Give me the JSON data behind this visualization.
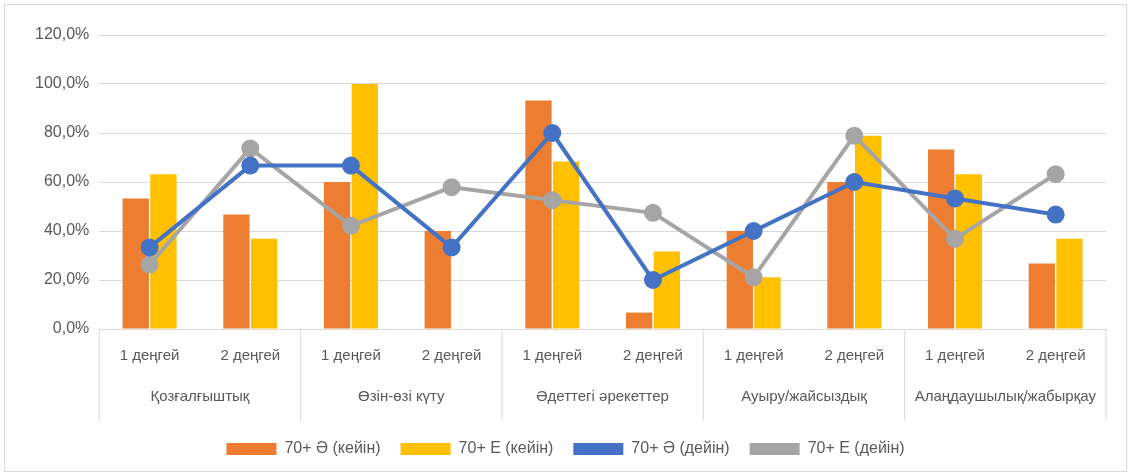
{
  "chart_data": {
    "type": "bar",
    "categories": [
      "1 деңгей",
      "2 деңгей",
      "1 деңгей",
      "2 деңгей",
      "1 деңгей",
      "2 деңгей",
      "1 деңгей",
      "2 деңгей",
      "1 деңгей",
      "2 деңгей"
    ],
    "annotations": [
      "Қозғалғыштық",
      "Өзін-өзі күту",
      "Әдеттегі әрекеттер",
      "Ауыру/жайсыздық",
      "Алаңдаушылық/жабырқау"
    ],
    "series": [
      {
        "name": "70+ Ә (кейін)",
        "color": "#ed7d31",
        "values": [
          53.3,
          46.7,
          60.0,
          40.0,
          93.3,
          6.7,
          40.0,
          60.0,
          73.3,
          26.7
        ]
      },
      {
        "name": "70+ Е (кейін)",
        "color": "#ffc000",
        "values": [
          63.2,
          36.8,
          100.0,
          0,
          68.4,
          31.6,
          21.1,
          78.9,
          63.2,
          36.8
        ]
      },
      {
        "name": "70+ Ә (дейін)",
        "type": "line",
        "color": "#4472c4",
        "values": [
          33.3,
          66.7,
          66.7,
          33.3,
          80.0,
          20.0,
          40.0,
          60.0,
          53.3,
          46.7
        ]
      },
      {
        "name": "70+ Е (дейін)",
        "type": "line",
        "color": "#a5a5a5",
        "values": [
          26.3,
          73.7,
          42.1,
          57.9,
          52.6,
          47.4,
          21.1,
          78.9,
          36.8,
          63.2
        ]
      }
    ],
    "ylim": [
      0,
      120
    ],
    "yticks": [
      {
        "value": 0,
        "label": "0,0%"
      },
      {
        "value": 20,
        "label": "20,0%"
      },
      {
        "value": 40,
        "label": "40,0%"
      },
      {
        "value": 60,
        "label": "60,0%"
      },
      {
        "value": 80,
        "label": "80,0%"
      },
      {
        "value": 100,
        "label": "100,0%"
      },
      {
        "value": 120,
        "label": "120,0%"
      }
    ],
    "grid": "y",
    "legend": "bottom",
    "marker": "circle",
    "line_style": "solid"
  }
}
